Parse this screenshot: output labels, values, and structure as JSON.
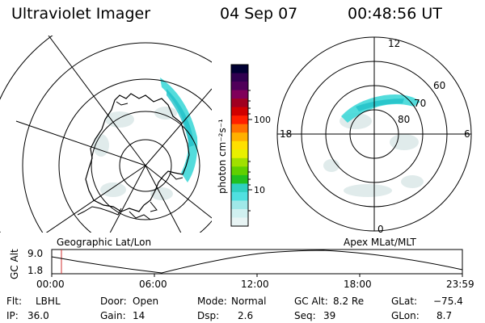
{
  "header": {
    "title": "Ultraviolet Imager",
    "date": "04 Sep 07",
    "time": "00:48:56 UT"
  },
  "colorbar": {
    "label": "photon cm⁻²s⁻¹",
    "ticks": [
      "100",
      "10"
    ],
    "colors": [
      "#000033",
      "#300050",
      "#50005a",
      "#80005a",
      "#a00020",
      "#d00000",
      "#ff2000",
      "#ff7000",
      "#ffb000",
      "#ffe000",
      "#e8f000",
      "#a0e000",
      "#60d000",
      "#20c020",
      "#30d0c0",
      "#50e0e0",
      "#a0e8e8",
      "#d0f0f0",
      "#e8f4f4"
    ]
  },
  "left_map": {
    "label": "Geographic Lat/Lon"
  },
  "right_map": {
    "label": "Apex MLat/MLT",
    "mlt_labels": {
      "top": "12",
      "bottom": "0",
      "left": "18",
      "right": "6"
    },
    "lat_labels": [
      "60",
      "70",
      "80"
    ]
  },
  "altitude_plot": {
    "ylabel": "GC Alt",
    "yticks": [
      "9.0",
      "1.8"
    ],
    "xticks": [
      "00:00",
      "06:00",
      "12:00",
      "18:00",
      "23:59"
    ]
  },
  "info": {
    "row1": [
      {
        "label": "Flt:",
        "value": "LBHL"
      },
      {
        "label": "Door:",
        "value": "Open"
      },
      {
        "label": "Mode:",
        "value": "Normal"
      },
      {
        "label": "GC Alt:",
        "value": "8.2 Re"
      },
      {
        "label": "GLat:",
        "value": "−75.4"
      }
    ],
    "row2": [
      {
        "label": "IP:",
        "value": "36.0"
      },
      {
        "label": "Gain:",
        "value": "14"
      },
      {
        "label": "Dsp:",
        "value": "2.6"
      },
      {
        "label": "Seq:",
        "value": "39"
      },
      {
        "label": "GLon:",
        "value": "8.7"
      }
    ]
  }
}
